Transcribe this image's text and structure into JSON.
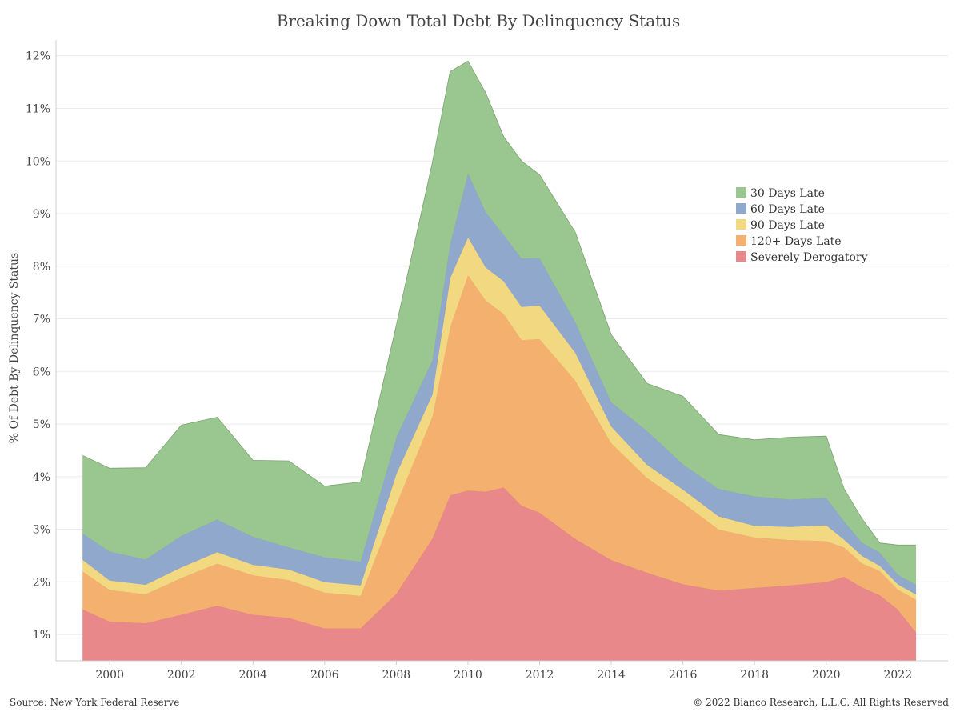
{
  "chart_data": {
    "type": "area",
    "stacked": true,
    "title": "Breaking Down Total Debt By Delinquency Status",
    "ylabel": "% Of Debt By Delinquency Status",
    "xlabel": "",
    "xlim": [
      1998.5,
      2023.4
    ],
    "ylim": [
      0.5,
      12.3
    ],
    "y_ticks": [
      "1%",
      "2%",
      "3%",
      "4%",
      "5%",
      "6%",
      "7%",
      "8%",
      "9%",
      "10%",
      "11%",
      "12%"
    ],
    "x_ticks": [
      "2000",
      "2002",
      "2004",
      "2006",
      "2008",
      "2010",
      "2012",
      "2014",
      "2016",
      "2018",
      "2020",
      "2022"
    ],
    "grid": true,
    "legend": "right",
    "x": [
      1999.25,
      2000.0,
      2001.0,
      2002.0,
      2003.0,
      2004.0,
      2005.0,
      2006.0,
      2007.0,
      2008.0,
      2009.0,
      2009.5,
      2010.0,
      2010.5,
      2011.0,
      2011.5,
      2012.0,
      2013.0,
      2014.0,
      2015.0,
      2016.0,
      2017.0,
      2018.0,
      2019.0,
      2020.0,
      2020.5,
      2021.0,
      2021.5,
      2022.0,
      2022.5
    ],
    "series": [
      {
        "name": "Severely Derogatory",
        "color": "#e8888a",
        "values": [
          1.48,
          1.25,
          1.22,
          1.38,
          1.55,
          1.38,
          1.32,
          1.12,
          1.12,
          1.78,
          2.82,
          3.65,
          3.74,
          3.72,
          3.8,
          3.45,
          3.32,
          2.82,
          2.42,
          2.18,
          1.96,
          1.84,
          1.89,
          1.94,
          2.0,
          2.1,
          1.9,
          1.75,
          1.48,
          1.05
        ]
      },
      {
        "name": "120+ Days Late",
        "color": "#f4b06e",
        "values": [
          0.72,
          0.6,
          0.55,
          0.7,
          0.8,
          0.75,
          0.72,
          0.68,
          0.62,
          1.7,
          2.32,
          3.2,
          4.1,
          3.63,
          3.3,
          3.15,
          3.3,
          3.01,
          2.22,
          1.8,
          1.55,
          1.16,
          0.96,
          0.86,
          0.78,
          0.56,
          0.46,
          0.46,
          0.38,
          0.62
        ]
      },
      {
        "name": "90 Days Late",
        "color": "#f3d882",
        "values": [
          0.22,
          0.18,
          0.18,
          0.2,
          0.22,
          0.2,
          0.2,
          0.2,
          0.2,
          0.58,
          0.42,
          0.93,
          0.72,
          0.63,
          0.62,
          0.63,
          0.64,
          0.53,
          0.32,
          0.25,
          0.25,
          0.25,
          0.22,
          0.25,
          0.3,
          0.15,
          0.14,
          0.1,
          0.1,
          0.1
        ]
      },
      {
        "name": "60 Days Late",
        "color": "#8fa8cc",
        "values": [
          0.5,
          0.55,
          0.48,
          0.6,
          0.62,
          0.53,
          0.42,
          0.47,
          0.45,
          0.7,
          0.65,
          0.65,
          1.22,
          1.05,
          0.88,
          0.92,
          0.9,
          0.58,
          0.46,
          0.64,
          0.48,
          0.52,
          0.56,
          0.52,
          0.52,
          0.35,
          0.25,
          0.25,
          0.18,
          0.18
        ]
      },
      {
        "name": "30 Days Late",
        "color": "#9ac68f",
        "values": [
          1.48,
          1.58,
          1.74,
          2.1,
          1.94,
          1.45,
          1.64,
          1.35,
          1.51,
          2.12,
          3.74,
          3.27,
          2.12,
          2.26,
          1.86,
          1.85,
          1.58,
          1.7,
          1.28,
          0.9,
          1.29,
          1.03,
          1.07,
          1.18,
          1.17,
          0.61,
          0.45,
          0.18,
          0.56,
          0.75
        ]
      }
    ]
  },
  "footer": {
    "source": "Source: New York Federal Reserve",
    "copyright": "© 2022 Bianco Research, L.L.C. All Rights Reserved"
  }
}
